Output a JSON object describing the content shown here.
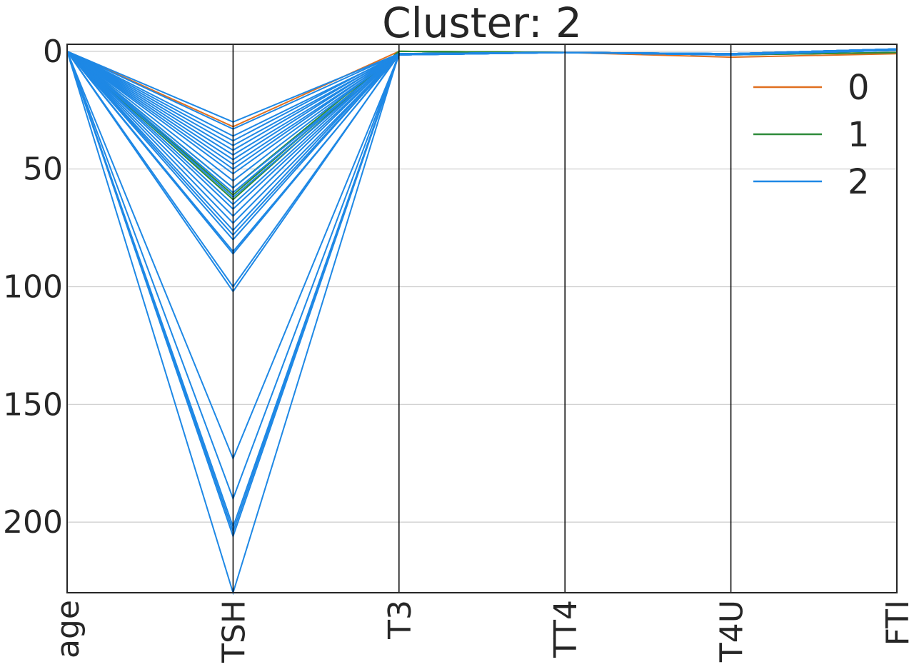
{
  "chart_data": {
    "type": "line",
    "kind": "parallel-coordinates",
    "title": "Cluster: 2",
    "categories": [
      "age",
      "TSH",
      "T3",
      "TT4",
      "T4U",
      "FTI"
    ],
    "ylim": [
      230,
      -3
    ],
    "yticks": [
      0,
      50,
      100,
      150,
      200
    ],
    "grid": true,
    "legend": {
      "placement": "top-right",
      "entries": [
        {
          "label": "0",
          "color": "#e07020"
        },
        {
          "label": "1",
          "color": "#2e8b3a"
        },
        {
          "label": "2",
          "color": "#1e88e5"
        }
      ]
    },
    "series": [
      {
        "group": "0",
        "color": "#e07020",
        "lines": [
          [
            0,
            32,
            0,
            0.5,
            2.5,
            1
          ]
        ]
      },
      {
        "group": "1",
        "color": "#2e8b3a",
        "lines": [
          [
            0,
            61,
            0,
            0.5,
            1.5,
            0.5
          ],
          [
            0,
            63,
            0,
            0.5,
            1.5,
            0.5
          ],
          [
            0,
            58,
            0,
            0.5,
            1.5,
            0.5
          ]
        ]
      },
      {
        "group": "2",
        "color": "#1e88e5",
        "lines": [
          [
            0,
            30,
            1,
            0.5,
            1,
            -1
          ],
          [
            0,
            33,
            1,
            0.5,
            1.5,
            -1
          ],
          [
            0,
            36,
            1.5,
            0.5,
            1,
            -1
          ],
          [
            0,
            38,
            1,
            0.5,
            1.5,
            -0.5
          ],
          [
            0,
            40,
            1.5,
            0.5,
            1,
            -1
          ],
          [
            0,
            42,
            1,
            0.5,
            1.5,
            -1
          ],
          [
            0,
            44,
            1.5,
            0.5,
            1,
            -1
          ],
          [
            0,
            46,
            1,
            0.5,
            1.5,
            -0.5
          ],
          [
            0,
            48,
            1.5,
            0.5,
            1,
            -1
          ],
          [
            0,
            50,
            1,
            0.5,
            1.5,
            -1
          ],
          [
            0,
            52,
            1.5,
            0.5,
            1,
            -1
          ],
          [
            0,
            55,
            1,
            0.5,
            1.5,
            -0.5
          ],
          [
            0,
            58,
            1.5,
            0.5,
            1,
            -1
          ],
          [
            0,
            60,
            1,
            0.5,
            1.5,
            -1
          ],
          [
            0,
            62,
            1.5,
            0.5,
            1,
            -1
          ],
          [
            0,
            65,
            1,
            0.5,
            1.5,
            -0.5
          ],
          [
            0,
            67,
            1.5,
            0.5,
            1,
            -1
          ],
          [
            0,
            70,
            1,
            0.5,
            1.5,
            -1
          ],
          [
            0,
            73,
            1.5,
            0.5,
            1,
            -1
          ],
          [
            0,
            76,
            1,
            0.5,
            1.5,
            -0.5
          ],
          [
            0,
            78,
            1.5,
            0.5,
            1,
            -1
          ],
          [
            0,
            80,
            1,
            0.5,
            1.5,
            -1
          ],
          [
            0,
            85,
            1.5,
            0.5,
            1,
            -1
          ],
          [
            0,
            86,
            1,
            0.5,
            1.5,
            -0.5
          ],
          [
            0,
            100,
            1.5,
            0.5,
            1,
            -1
          ],
          [
            0,
            102,
            1,
            0.5,
            1.5,
            -1
          ],
          [
            0,
            173,
            1.5,
            0.5,
            1,
            -1
          ],
          [
            0,
            190,
            1,
            0.5,
            1.5,
            -0.5
          ],
          [
            0,
            202,
            1.5,
            0.5,
            1,
            -1
          ],
          [
            0,
            204,
            1,
            0.5,
            1.5,
            -1
          ],
          [
            0,
            206,
            1.5,
            0.5,
            1,
            -1
          ],
          [
            0,
            230,
            1,
            0.5,
            1.5,
            -1
          ]
        ]
      }
    ]
  }
}
